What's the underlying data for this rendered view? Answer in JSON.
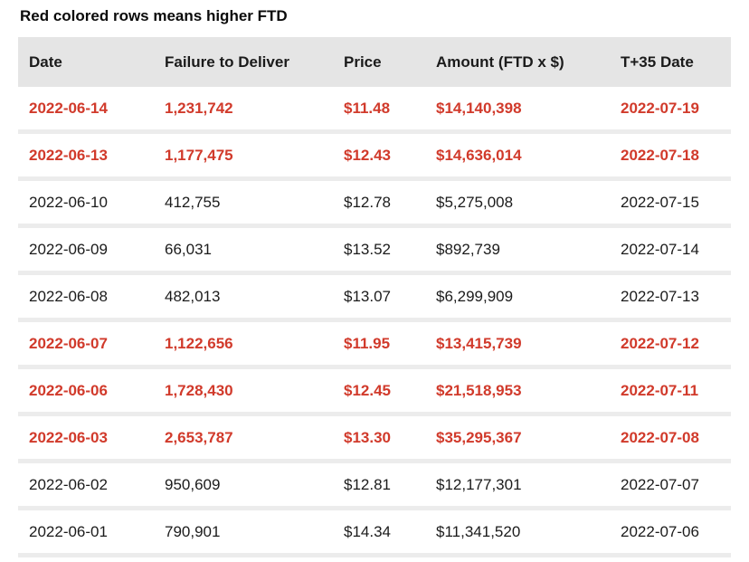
{
  "title": "Red colored rows means higher FTD",
  "colors": {
    "highlight_red": "#d13a2b",
    "header_bg": "#e5e5e5",
    "divider": "#ececec",
    "text": "#1b1b1b"
  },
  "table": {
    "columns": [
      "Date",
      "Failure to Deliver",
      "Price",
      "Amount (FTD x $)",
      "T+35 Date"
    ],
    "rows": [
      {
        "date": "2022-06-14",
        "ftd": "1,231,742",
        "price": "$11.48",
        "amount": "$14,140,398",
        "t35": "2022-07-19",
        "highlight": true
      },
      {
        "date": "2022-06-13",
        "ftd": "1,177,475",
        "price": "$12.43",
        "amount": "$14,636,014",
        "t35": "2022-07-18",
        "highlight": true
      },
      {
        "date": "2022-06-10",
        "ftd": "412,755",
        "price": "$12.78",
        "amount": "$5,275,008",
        "t35": "2022-07-15",
        "highlight": false
      },
      {
        "date": "2022-06-09",
        "ftd": "66,031",
        "price": "$13.52",
        "amount": "$892,739",
        "t35": "2022-07-14",
        "highlight": false
      },
      {
        "date": "2022-06-08",
        "ftd": "482,013",
        "price": "$13.07",
        "amount": "$6,299,909",
        "t35": "2022-07-13",
        "highlight": false
      },
      {
        "date": "2022-06-07",
        "ftd": "1,122,656",
        "price": "$11.95",
        "amount": "$13,415,739",
        "t35": "2022-07-12",
        "highlight": true
      },
      {
        "date": "2022-06-06",
        "ftd": "1,728,430",
        "price": "$12.45",
        "amount": "$21,518,953",
        "t35": "2022-07-11",
        "highlight": true
      },
      {
        "date": "2022-06-03",
        "ftd": "2,653,787",
        "price": "$13.30",
        "amount": "$35,295,367",
        "t35": "2022-07-08",
        "highlight": true
      },
      {
        "date": "2022-06-02",
        "ftd": "950,609",
        "price": "$12.81",
        "amount": "$12,177,301",
        "t35": "2022-07-07",
        "highlight": false
      },
      {
        "date": "2022-06-01",
        "ftd": "790,901",
        "price": "$14.34",
        "amount": "$11,341,520",
        "t35": "2022-07-06",
        "highlight": false
      }
    ]
  },
  "chart_data": {
    "type": "table",
    "title": "Red colored rows means higher FTD",
    "columns": [
      "Date",
      "Failure to Deliver",
      "Price",
      "Amount (FTD x $)",
      "T+35 Date"
    ],
    "rows": [
      [
        "2022-06-14",
        1231742,
        11.48,
        14140398,
        "2022-07-19"
      ],
      [
        "2022-06-13",
        1177475,
        12.43,
        14636014,
        "2022-07-18"
      ],
      [
        "2022-06-10",
        412755,
        12.78,
        5275008,
        "2022-07-15"
      ],
      [
        "2022-06-09",
        66031,
        13.52,
        892739,
        "2022-07-14"
      ],
      [
        "2022-06-08",
        482013,
        13.07,
        6299909,
        "2022-07-13"
      ],
      [
        "2022-06-07",
        1122656,
        11.95,
        13415739,
        "2022-07-12"
      ],
      [
        "2022-06-06",
        1728430,
        12.45,
        21518953,
        "2022-07-11"
      ],
      [
        "2022-06-03",
        2653787,
        13.3,
        35295367,
        "2022-07-08"
      ],
      [
        "2022-06-02",
        950609,
        12.81,
        12177301,
        "2022-07-07"
      ],
      [
        "2022-06-01",
        790901,
        14.34,
        11341520,
        "2022-07-06"
      ]
    ],
    "highlighted_row_indices": [
      0,
      1,
      5,
      6,
      7
    ],
    "highlight_meaning": "higher FTD",
    "layout": {
      "header_background": "#e5e5e5",
      "highlight_color": "#d13a2b",
      "grid": "horizontal-dividers"
    }
  }
}
